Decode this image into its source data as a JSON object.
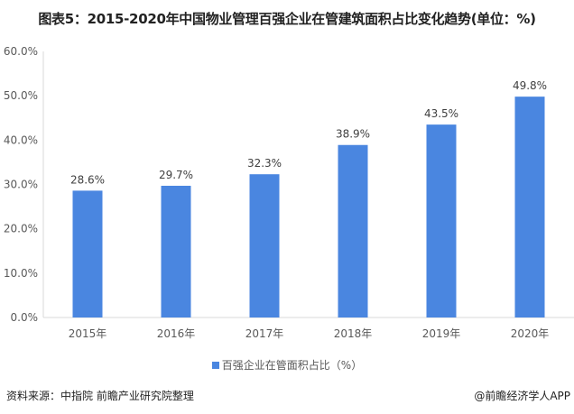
{
  "title": "图表5：2015-2020年中国物业管理百强企业在管建筑面积占比变化趋势(单位：%)",
  "source": "资料来源：中指院 前瞻产业研究院整理",
  "brand": "@前瞻经济学人APP",
  "chart_data": {
    "type": "bar",
    "title": "图表5：2015-2020年中国物业管理百强企业在管建筑面积占比变化趋势(单位：%)",
    "categories": [
      "2015年",
      "2016年",
      "2017年",
      "2018年",
      "2019年",
      "2020年"
    ],
    "series": [
      {
        "name": "百强企业在管面积占比（%）",
        "values": [
          28.6,
          29.7,
          32.3,
          38.9,
          43.5,
          49.8
        ],
        "color": "#4a86e0"
      }
    ],
    "data_labels": [
      "28.6%",
      "29.7%",
      "32.3%",
      "38.9%",
      "43.5%",
      "49.8%"
    ],
    "y_ticks": [
      "0.0%",
      "10.0%",
      "20.0%",
      "30.0%",
      "40.0%",
      "50.0%",
      "60.0%"
    ],
    "ylim": [
      0,
      60
    ],
    "grid": false,
    "legend": "bottom"
  }
}
